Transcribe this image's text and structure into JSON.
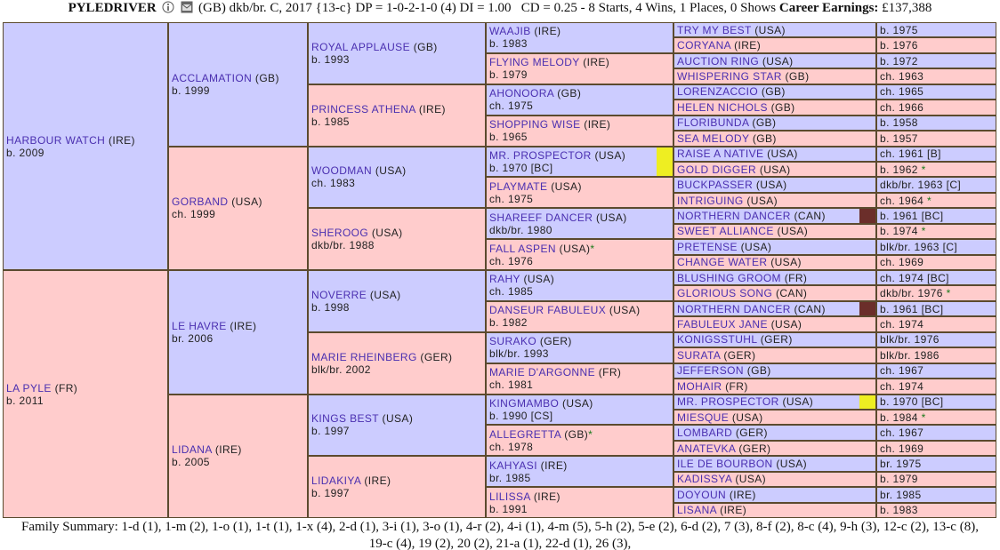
{
  "header": {
    "name": "PYLEDRIVER",
    "details": "(GB) dkb/br. C, 2017 {13-c} DP = 1-0-2-1-0 (4) DI = 1.00   CD = 0.25 - 8 Starts, 4 Wins, 1 Places, 0 Shows",
    "earnings_label": "Career Earnings:",
    "earnings": "£137,388"
  },
  "generations": [
    [
      {
        "name": "HARBOUR WATCH",
        "country": "(IRE)",
        "info": "b. 2009"
      },
      {
        "name": "LA PYLE",
        "country": "(FR)",
        "info": "b. 2011"
      }
    ],
    [
      {
        "name": "ACCLAMATION",
        "country": "(GB)",
        "info": "b. 1999"
      },
      {
        "name": "GORBAND",
        "country": "(USA)",
        "info": "ch. 1999"
      },
      {
        "name": "LE HAVRE",
        "country": "(IRE)",
        "info": "br. 2006"
      },
      {
        "name": "LIDANA",
        "country": "(IRE)",
        "info": "b. 2005"
      }
    ],
    [
      {
        "name": "ROYAL APPLAUSE",
        "country": "(GB)",
        "info": "b. 1993"
      },
      {
        "name": "PRINCESS ATHENA",
        "country": "(IRE)",
        "info": "b. 1985"
      },
      {
        "name": "WOODMAN",
        "country": "(USA)",
        "info": "ch. 1983"
      },
      {
        "name": "SHEROOG",
        "country": "(USA)",
        "info": "dkb/br. 1988"
      },
      {
        "name": "NOVERRE",
        "country": "(USA)",
        "info": "b. 1998"
      },
      {
        "name": "MARIE RHEINBERG",
        "country": "(GER)",
        "info": "blk/br. 2002"
      },
      {
        "name": "KINGS BEST",
        "country": "(USA)",
        "info": "b. 1997"
      },
      {
        "name": "LIDAKIYA",
        "country": "(IRE)",
        "info": "b. 1997"
      }
    ],
    [
      {
        "name": "WAAJIB",
        "country": "(IRE)",
        "info": "b. 1983"
      },
      {
        "name": "FLYING MELODY",
        "country": "(IRE)",
        "info": "b. 1979"
      },
      {
        "name": "AHONOORA",
        "country": "(GB)",
        "info": "ch. 1975"
      },
      {
        "name": "SHOPPING WISE",
        "country": "(IRE)",
        "info": "b. 1965"
      },
      {
        "name": "MR. PROSPECTOR",
        "country": "(USA)",
        "info": "b. 1970 [BC]",
        "highlight": "#eeee22"
      },
      {
        "name": "PLAYMATE",
        "country": "(USA)",
        "info": "ch. 1975"
      },
      {
        "name": "SHAREEF DANCER",
        "country": "(USA)",
        "info": "dkb/br. 1980"
      },
      {
        "name": "FALL ASPEN",
        "country": "(USA)",
        "star": "*",
        "info": "ch. 1976"
      },
      {
        "name": "RAHY",
        "country": "(USA)",
        "info": "ch. 1985"
      },
      {
        "name": "DANSEUR FABULEUX",
        "country": "(USA)",
        "info": "b. 1982"
      },
      {
        "name": "SURAKO",
        "country": "(GER)",
        "info": "blk/br. 1993"
      },
      {
        "name": "MARIE D'ARGONNE",
        "country": "(FR)",
        "info": "ch. 1981"
      },
      {
        "name": "KINGMAMBO",
        "country": "(USA)",
        "info": "b. 1990 [CS]"
      },
      {
        "name": "ALLEGRETTA",
        "country": "(GB)",
        "star": "*",
        "info": "ch. 1978"
      },
      {
        "name": "KAHYASI",
        "country": "(IRE)",
        "info": "br. 1985"
      },
      {
        "name": "LILISSA",
        "country": "(IRE)",
        "info": "b. 1991"
      }
    ],
    [
      {
        "name": "TRY MY BEST",
        "country": "(USA)",
        "info": "b. 1975"
      },
      {
        "name": "CORYANA",
        "country": "(IRE)",
        "info": "b. 1976"
      },
      {
        "name": "AUCTION RING",
        "country": "(USA)",
        "info": "b. 1972"
      },
      {
        "name": "WHISPERING STAR",
        "country": "(GB)",
        "info": "ch. 1963"
      },
      {
        "name": "LORENZACCIO",
        "country": "(GB)",
        "info": "ch. 1965"
      },
      {
        "name": "HELEN NICHOLS",
        "country": "(GB)",
        "info": "ch. 1966"
      },
      {
        "name": "FLORIBUNDA",
        "country": "(GB)",
        "info": "b. 1958"
      },
      {
        "name": "SEA MELODY",
        "country": "(GB)",
        "info": "b. 1957"
      },
      {
        "name": "RAISE A NATIVE",
        "country": "(USA)",
        "info": "ch. 1961 [B]"
      },
      {
        "name": "GOLD DIGGER",
        "country": "(USA)",
        "info": "b. 1962",
        "star": "*"
      },
      {
        "name": "BUCKPASSER",
        "country": "(USA)",
        "info": "dkb/br. 1963 [C]"
      },
      {
        "name": "INTRIGUING",
        "country": "(USA)",
        "info": "ch. 1964",
        "star": "*"
      },
      {
        "name": "NORTHERN DANCER",
        "country": "(CAN)",
        "info": "b. 1961 [BC]",
        "highlight": "#6b2e2a"
      },
      {
        "name": "SWEET ALLIANCE",
        "country": "(USA)",
        "info": "b. 1974",
        "star": "*"
      },
      {
        "name": "PRETENSE",
        "country": "(USA)",
        "info": "blk/br. 1963 [C]"
      },
      {
        "name": "CHANGE WATER",
        "country": "(USA)",
        "info": "ch. 1969"
      },
      {
        "name": "BLUSHING GROOM",
        "country": "(FR)",
        "info": "ch. 1974 [BC]"
      },
      {
        "name": "GLORIOUS SONG",
        "country": "(CAN)",
        "info": "dkb/br. 1976",
        "star": "*"
      },
      {
        "name": "NORTHERN DANCER",
        "country": "(CAN)",
        "info": "b. 1961 [BC]",
        "highlight": "#6b2e2a"
      },
      {
        "name": "FABULEUX JANE",
        "country": "(USA)",
        "info": "ch. 1974"
      },
      {
        "name": "KONIGSSTUHL",
        "country": "(GER)",
        "info": "blk/br. 1976"
      },
      {
        "name": "SURATA",
        "country": "(GER)",
        "info": "blk/br. 1986"
      },
      {
        "name": "JEFFERSON",
        "country": "(GB)",
        "info": "ch. 1967"
      },
      {
        "name": "MOHAIR",
        "country": "(FR)",
        "info": "ch. 1974"
      },
      {
        "name": "MR. PROSPECTOR",
        "country": "(USA)",
        "info": "b. 1970 [BC]",
        "highlight": "#eeee22"
      },
      {
        "name": "MIESQUE",
        "country": "(USA)",
        "info": "b. 1984",
        "star": "*"
      },
      {
        "name": "LOMBARD",
        "country": "(GER)",
        "info": "ch. 1967"
      },
      {
        "name": "ANATEVKA",
        "country": "(GER)",
        "info": "ch. 1969"
      },
      {
        "name": "ILE DE BOURBON",
        "country": "(USA)",
        "info": "br. 1975"
      },
      {
        "name": "KADISSYA",
        "country": "(USA)",
        "info": "b. 1979"
      },
      {
        "name": "DOYOUN",
        "country": "(IRE)",
        "info": "br. 1985"
      },
      {
        "name": "LISANA",
        "country": "(IRE)",
        "info": "b. 1983"
      }
    ]
  ],
  "footer": {
    "family_summary": "Family Summary: 1-d (1), 1-m (2), 1-o (1), 1-t (1), 1-x (4), 2-d (1), 3-i (1), 3-o (1), 4-r (2), 4-i (1), 4-m (5), 5-h (2), 5-e (2), 6-d (2), 7 (3), 8-f (2), 8-c (4), 9-h (3), 12-c (2), 13-c (8), 19-c (4), 19 (2), 20 (2), 21-a (1), 22-d (1), 26 (3),"
  }
}
